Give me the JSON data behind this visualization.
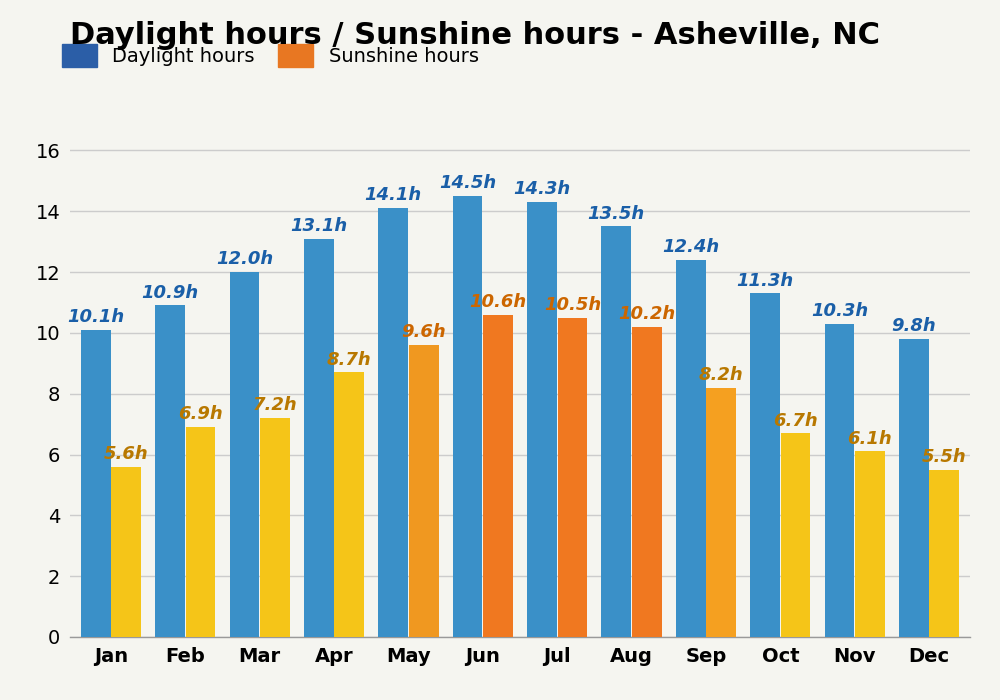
{
  "title": "Daylight hours / Sunshine hours - Asheville, NC",
  "months": [
    "Jan",
    "Feb",
    "Mar",
    "Apr",
    "May",
    "Jun",
    "Jul",
    "Aug",
    "Sep",
    "Oct",
    "Nov",
    "Dec"
  ],
  "daylight": [
    10.1,
    10.9,
    12.0,
    13.1,
    14.1,
    14.5,
    14.3,
    13.5,
    12.4,
    11.3,
    10.3,
    9.8
  ],
  "sunshine": [
    5.6,
    6.9,
    7.2,
    8.7,
    9.6,
    10.6,
    10.5,
    10.2,
    8.2,
    6.7,
    6.1,
    5.5
  ],
  "sunshine_bar_colors": [
    "#f5c518",
    "#f5c518",
    "#f5c518",
    "#f5c518",
    "#f09820",
    "#f07820",
    "#f07820",
    "#f07820",
    "#f5a020",
    "#f5c518",
    "#f5c518",
    "#f5c518"
  ],
  "daylight_bar_color": "#3a90c8",
  "daylight_label_color": "#1a5fa8",
  "sunshine_label_color_winter": "#b87800",
  "sunshine_label_color_summer": "#cc6600",
  "legend_daylight_color": "#2b5ea7",
  "legend_sunshine_color": "#e87722",
  "ylim": [
    0,
    16.8
  ],
  "yticks": [
    0,
    2,
    4,
    6,
    8,
    10,
    12,
    14,
    16
  ],
  "background_color": "#f5f5f0",
  "grid_color": "#cccccc",
  "title_fontsize": 22,
  "tick_fontsize": 14,
  "legend_fontsize": 14,
  "bar_label_fontsize": 13,
  "bar_width": 0.4,
  "bar_gap": 0.01
}
